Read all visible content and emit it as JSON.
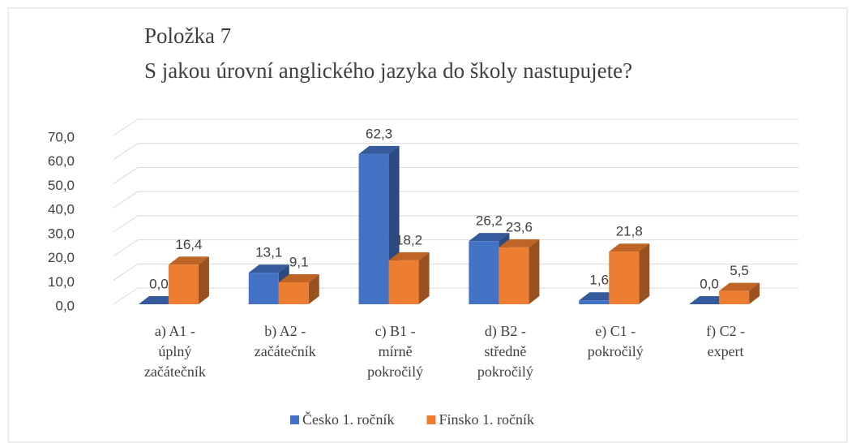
{
  "chart_data": {
    "type": "bar3d",
    "title": "Položka 7",
    "subtitle": "S jakou úrovní anglického jazyka do školy nastupujete?",
    "categories": [
      [
        "a) A1 -",
        "úplný",
        "začátečník"
      ],
      [
        "b) A2 -",
        "začátečník"
      ],
      [
        "c) B1 -",
        "mírně",
        "pokročilý"
      ],
      [
        "d) B2 -",
        "středně",
        "pokročilý"
      ],
      [
        "e) C1 -",
        "pokročilý"
      ],
      [
        "f) C2 -",
        "expert"
      ]
    ],
    "series": [
      {
        "name": "Česko 1. ročník",
        "color": "#4472c4",
        "values": [
          0.0,
          13.1,
          62.3,
          26.2,
          1.6,
          0.0
        ],
        "value_labels": [
          "0,0",
          "13,1",
          "62,3",
          "26,2",
          "1,6",
          "0,0"
        ]
      },
      {
        "name": "Finsko 1. ročník",
        "color": "#ed7d31",
        "values": [
          16.4,
          9.1,
          18.2,
          23.6,
          21.8,
          5.5
        ],
        "value_labels": [
          "16,4",
          "9,1",
          "18,2",
          "23,6",
          "21,8",
          "5,5"
        ]
      }
    ],
    "ylim": [
      0,
      70
    ],
    "yticks": [
      {
        "value": 0,
        "label": "0,0"
      },
      {
        "value": 10,
        "label": "10,0"
      },
      {
        "value": 20,
        "label": "20,0"
      },
      {
        "value": 30,
        "label": "30,0"
      },
      {
        "value": 40,
        "label": "40,0"
      },
      {
        "value": 50,
        "label": "50,0"
      },
      {
        "value": 60,
        "label": "60,0"
      },
      {
        "value": 70,
        "label": "70,0"
      }
    ],
    "grid": true,
    "legend": "bottom"
  }
}
